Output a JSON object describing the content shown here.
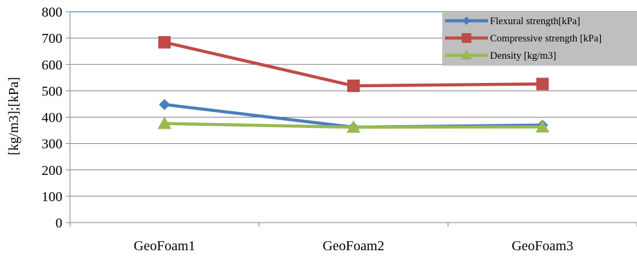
{
  "chart_data": {
    "type": "line",
    "title": "",
    "xlabel": "",
    "ylabel": "[kg/m3];[kPa]",
    "categories": [
      "GeoFoam1",
      "GeoFoam2",
      "GeoFoam3"
    ],
    "ylim": [
      0,
      800
    ],
    "yticks": [
      0,
      100,
      200,
      300,
      400,
      500,
      600,
      700,
      800
    ],
    "grid": true,
    "legend_position": "top-right",
    "series": [
      {
        "name": "Flexural strength[kPa]",
        "values": [
          448,
          362,
          370
        ],
        "color": "#4a7ebb",
        "marker": "diamond"
      },
      {
        "name": "Compressive strength [kPa]",
        "values": [
          684,
          519,
          526
        ],
        "color": "#be4b48",
        "marker": "square"
      },
      {
        "name": "Density [kg/m3]",
        "values": [
          376,
          362,
          363
        ],
        "color": "#98b954",
        "marker": "triangle"
      }
    ]
  },
  "colors": {
    "legend_background": "#bfbfbf",
    "top_border": "#4a7ebb",
    "gridline": "#808080"
  }
}
